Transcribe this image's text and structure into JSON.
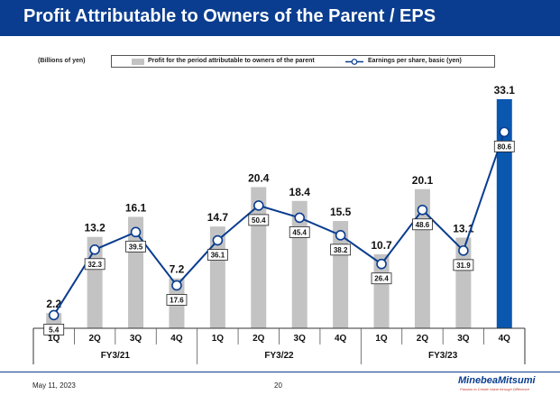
{
  "page": {
    "title": "Profit Attributable to Owners of the Parent / EPS",
    "unit_label": "(Billions of yen)",
    "footer_date": "May 11, 2023",
    "page_number": "20",
    "logo_name": "MinebeaMitsumi",
    "logo_tagline": "Passion to Create Value through Difference"
  },
  "colors": {
    "title_bar": "#0a3d8f",
    "bar_default": "#c3c3c3",
    "bar_highlight": "#0a57b0",
    "line": "#0a3d8f"
  },
  "chart_data": {
    "type": "bar",
    "categories": [
      "1Q",
      "2Q",
      "3Q",
      "4Q",
      "1Q",
      "2Q",
      "3Q",
      "4Q",
      "1Q",
      "2Q",
      "3Q",
      "4Q"
    ],
    "groups": [
      {
        "label": "FY3/21",
        "start": 0,
        "end": 3
      },
      {
        "label": "FY3/22",
        "start": 4,
        "end": 7
      },
      {
        "label": "FY3/23",
        "start": 8,
        "end": 11
      }
    ],
    "series": [
      {
        "name": "Profit for the period attributable to owners of the parent",
        "type": "bar",
        "values": [
          2.2,
          13.2,
          16.1,
          7.2,
          14.7,
          20.4,
          18.4,
          15.5,
          10.7,
          20.1,
          13.1,
          33.1
        ],
        "labels": [
          "2.2",
          "13.2",
          "16.1",
          "7.2",
          "14.7",
          "20.4",
          "18.4",
          "15.5",
          "10.7",
          "20.1",
          "13.1",
          "33.1"
        ],
        "highlight_index": 11
      },
      {
        "name": "Earnings per share, basic (yen)",
        "type": "line",
        "values": [
          5.4,
          32.3,
          39.5,
          17.6,
          36.1,
          50.4,
          45.4,
          38.2,
          26.4,
          48.6,
          31.9,
          80.6
        ],
        "labels": [
          "5.4",
          "32.3",
          "39.5",
          "17.6",
          "36.1",
          "50.4",
          "45.4",
          "38.2",
          "26.4",
          "48.6",
          "31.9",
          "80.6"
        ]
      }
    ],
    "bar_ylim": [
      0,
      33.1
    ],
    "line_ylim": [
      0,
      100
    ]
  }
}
